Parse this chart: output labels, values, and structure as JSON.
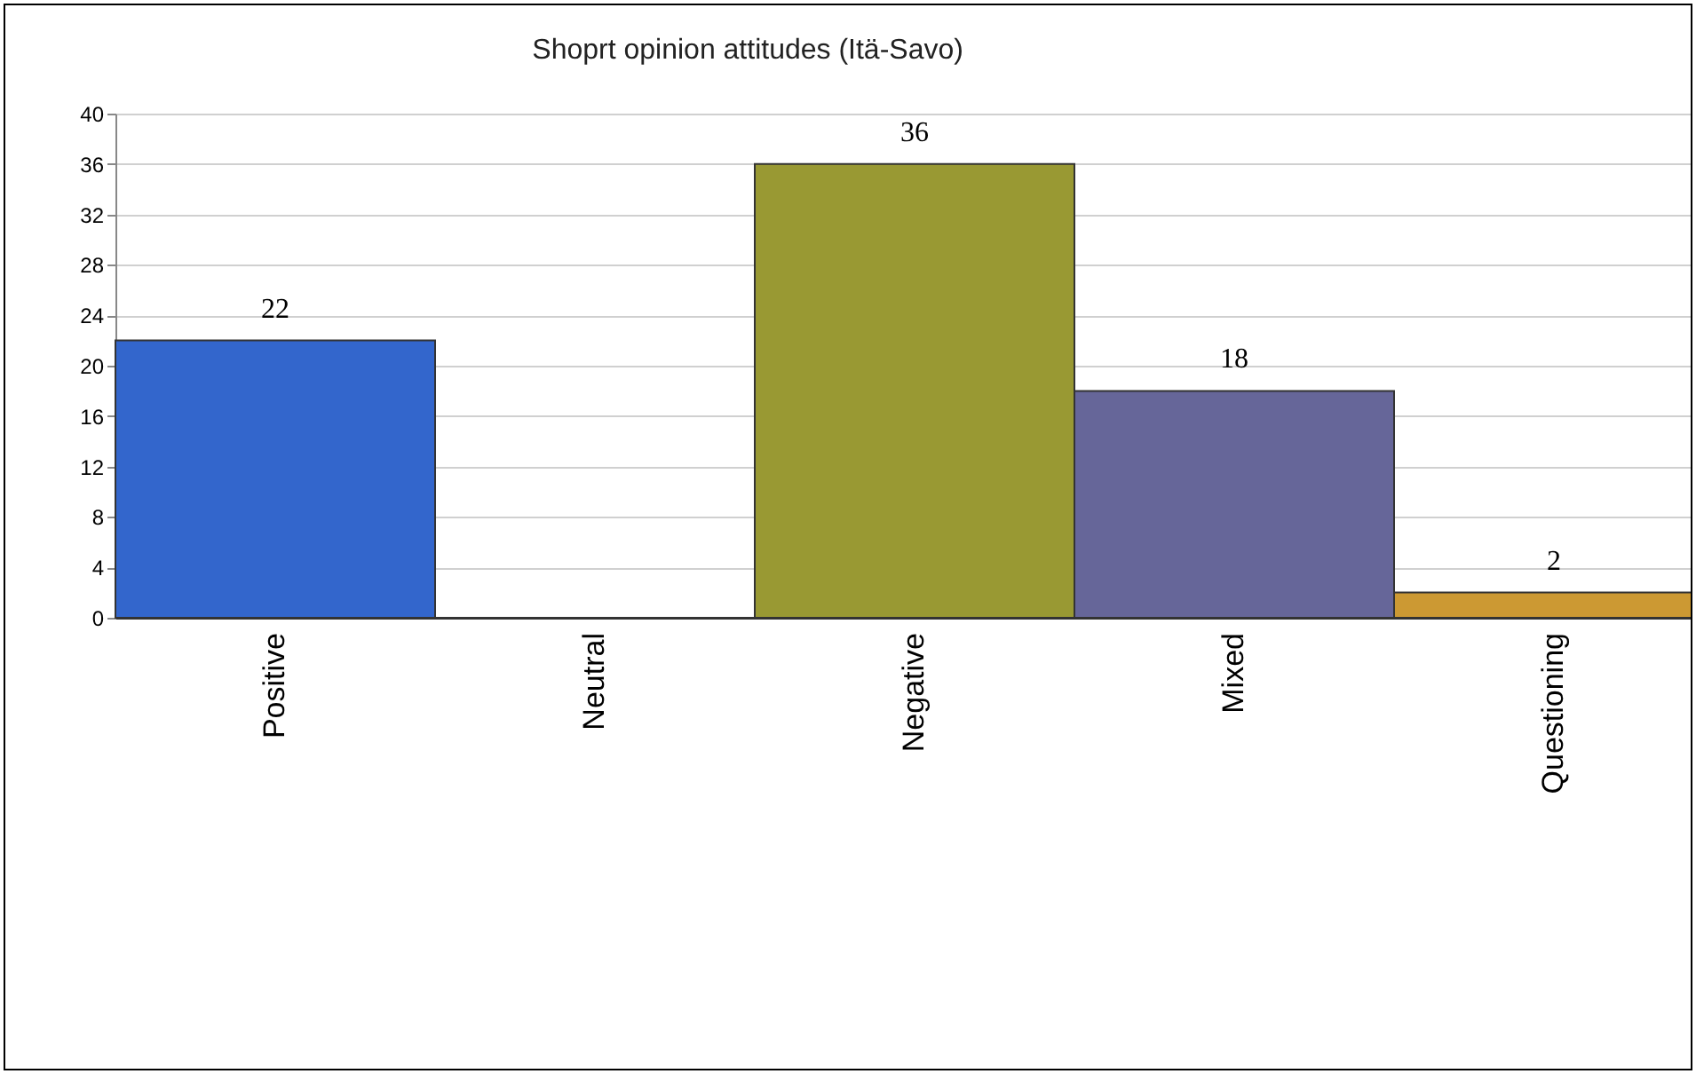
{
  "chart_data": {
    "type": "bar",
    "title": "Shoprt opinion attitudes (Itä-Savo)",
    "categories": [
      "Positive",
      "Neutral",
      "Negative",
      "Mixed",
      "Questioning"
    ],
    "values": [
      22,
      0,
      36,
      18,
      2
    ],
    "colors": [
      "#3366cc",
      "#cccccc",
      "#999933",
      "#666699",
      "#cc9933"
    ],
    "value_labels": [
      "22",
      null,
      "36",
      "18",
      "2"
    ],
    "ylim": [
      0,
      40
    ],
    "yticks": [
      0,
      4,
      8,
      12,
      16,
      20,
      24,
      28,
      32,
      36,
      40
    ],
    "grid": "y"
  }
}
